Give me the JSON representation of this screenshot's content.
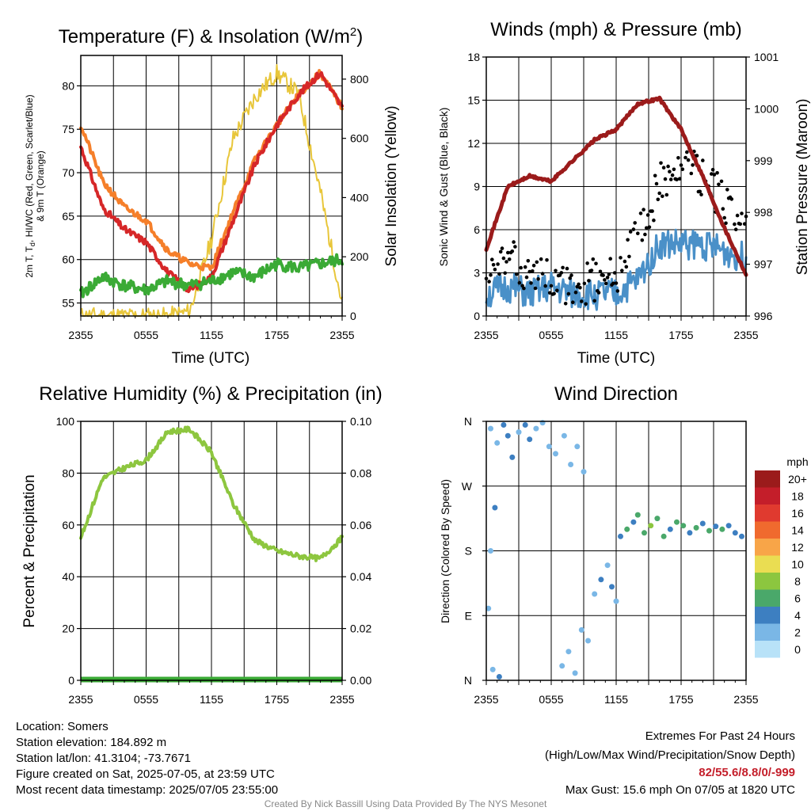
{
  "colors": {
    "temp": "#d62728",
    "dewpoint": "#3aaa35",
    "t9m": "#f57f2a",
    "solar": "#f5e04d",
    "solar_edge": "#e8c63a",
    "rh": "#8dc63f",
    "pressure": "#9b1b1b",
    "wind": "#4a90c8",
    "gust": "#000000",
    "extremes": "#c41e2a"
  },
  "time_ticks": [
    "2355",
    "0555",
    "1155",
    "1755",
    "2355"
  ],
  "charts": [
    {
      "title_pre": "Temperature (F) & Insolation (W/m",
      "title_sup": "2",
      "title_post": ")",
      "xlabel": "Time (UTC)",
      "ylabel_line1": "2m T, T",
      "ylabel_sub": "d",
      "ylabel_line1_post": ", HI/WC (Red, Green, Scarlet/Blue)",
      "ylabel_line2": "& 9m T (Orange)",
      "y2label": "Solar Insolation (Yellow)",
      "yticks": [
        "55",
        "60",
        "65",
        "70",
        "75",
        "80"
      ],
      "y2ticks": [
        "0",
        "200",
        "400",
        "600",
        "800"
      ]
    },
    {
      "title": "Winds (mph) & Pressure (mb)",
      "xlabel": "Time (UTC)",
      "ylabel": "Sonic Wind & Gust (Blue, Black)",
      "y2label": "Station Pressure (Maroon)",
      "yticks": [
        "0",
        "3",
        "6",
        "9",
        "12",
        "15",
        "18"
      ],
      "y2ticks": [
        "996",
        "997",
        "998",
        "999",
        "1000",
        "1001"
      ]
    },
    {
      "title": "Relative Humidity (%) & Precipitation (in)",
      "ylabel": "Percent & Precipitation",
      "yticks": [
        "0",
        "20",
        "40",
        "60",
        "80",
        "100"
      ],
      "y2ticks": [
        "0.00",
        "0.02",
        "0.04",
        "0.06",
        "0.08",
        "0.10"
      ]
    },
    {
      "title": "Wind Direction",
      "ylabel": "Direction (Colored By Speed)",
      "yticks": [
        "N",
        "E",
        "S",
        "W",
        "N"
      ],
      "legend_title": "mph",
      "legend_labels": [
        "20+",
        "18",
        "16",
        "14",
        "12",
        "10",
        "8",
        "6",
        "4",
        "2",
        "0"
      ],
      "legend_colors": [
        "#9b1b1b",
        "#c41e2a",
        "#e03a2f",
        "#f06a2e",
        "#f8a548",
        "#eadd52",
        "#8cc63f",
        "#4aa86a",
        "#3d7fc1",
        "#7ab7e6",
        "#b8e2f8"
      ]
    }
  ],
  "chart_data": [
    {
      "type": "line",
      "title": "Temperature (F) & Insolation (W/m2)",
      "xlabel": "Time (UTC)",
      "ylabel": "2m T, Td, HI/WC (Red, Green, Scarlet/Blue) & 9m T (Orange)",
      "y2label": "Solar Insolation (Yellow)",
      "x": [
        "2355",
        "0155",
        "0355",
        "0555",
        "0755",
        "0955",
        "1155",
        "1355",
        "1555",
        "1755",
        "1955",
        "2155",
        "2355"
      ],
      "ylim": [
        53.5,
        83.5
      ],
      "y2lim": [
        0,
        880
      ],
      "series": [
        {
          "axis": "left",
          "values": [
            73,
            66,
            63.5,
            62,
            58.5,
            56.5,
            58,
            64.5,
            71,
            75.5,
            79,
            81.5,
            77.5
          ]
        },
        {
          "axis": "left",
          "values": [
            75.5,
            69,
            66,
            64.5,
            61,
            59.5,
            59,
            65.5,
            71.5,
            75.5,
            79,
            81.5,
            77.5
          ]
        },
        {
          "axis": "left",
          "values": [
            56,
            58,
            57,
            56.5,
            57.5,
            57,
            57.5,
            58.5,
            58,
            59.5,
            59,
            59.5,
            60
          ]
        },
        {
          "axis": "right",
          "values": [
            0,
            0,
            0,
            0,
            0,
            15,
            260,
            600,
            740,
            820,
            750,
            420,
            40
          ]
        }
      ],
      "grid": true
    },
    {
      "type": "line",
      "title": "Winds (mph) & Pressure (mb)",
      "xlabel": "Time (UTC)",
      "ylabel": "Sonic Wind & Gust (Blue, Black)",
      "y2label": "Station Pressure (Maroon)",
      "x": [
        "2355",
        "0155",
        "0355",
        "0555",
        "0755",
        "0955",
        "1155",
        "1355",
        "1555",
        "1755",
        "1955",
        "2155",
        "2355"
      ],
      "ylim": [
        0,
        18
      ],
      "y2lim": [
        996,
        1001
      ],
      "series": [
        {
          "axis": "left",
          "values": [
            1.5,
            2,
            1.5,
            2,
            1.5,
            1.5,
            1.5,
            2.5,
            5,
            5,
            5,
            4.5,
            4
          ]
        },
        {
          "axis": "left",
          "values": [
            2,
            4,
            3,
            2.5,
            2,
            2.5,
            3,
            5.5,
            9,
            11,
            9.5,
            8,
            7
          ]
        },
        {
          "axis": "right",
          "values": [
            997.3,
            998.5,
            998.7,
            998.6,
            999.0,
            999.4,
            999.6,
            1000.1,
            1000.2,
            999.6,
            998.7,
            997.7,
            996.8
          ]
        }
      ],
      "grid": true
    },
    {
      "type": "line",
      "title": "Relative Humidity (%) & Precipitation (in)",
      "ylabel": "Percent & Precipitation",
      "x": [
        "2355",
        "0155",
        "0355",
        "0555",
        "0755",
        "0955",
        "1155",
        "1355",
        "1555",
        "1755",
        "1955",
        "2155",
        "2355"
      ],
      "ylim": [
        0,
        100
      ],
      "y2lim": [
        0,
        0.1
      ],
      "series": [
        {
          "axis": "left",
          "values": [
            55,
            78,
            82,
            85,
            96,
            97,
            88,
            68,
            54,
            50,
            48,
            47,
            55
          ]
        },
        {
          "axis": "right",
          "values": [
            0,
            0,
            0,
            0,
            0,
            0,
            0,
            0,
            0,
            0,
            0,
            0,
            0
          ]
        }
      ],
      "grid": true
    },
    {
      "type": "scatter",
      "title": "Wind Direction",
      "ylabel": "Direction (Colored By Speed)",
      "x_range": [
        "2355",
        "2355"
      ],
      "yticks": [
        "N",
        "E",
        "S",
        "W",
        "N"
      ],
      "points": [
        {
          "x": 0.2,
          "dir": 350,
          "speed": 1
        },
        {
          "x": 0.5,
          "dir": 330,
          "speed": 2
        },
        {
          "x": 0.8,
          "dir": 355,
          "speed": 3
        },
        {
          "x": 1.0,
          "dir": 340,
          "speed": 4
        },
        {
          "x": 1.2,
          "dir": 310,
          "speed": 3
        },
        {
          "x": 1.5,
          "dir": 345,
          "speed": 2
        },
        {
          "x": 1.8,
          "dir": 355,
          "speed": 3
        },
        {
          "x": 2.0,
          "dir": 335,
          "speed": 4
        },
        {
          "x": 2.3,
          "dir": 350,
          "speed": 2
        },
        {
          "x": 2.6,
          "dir": 358,
          "speed": 1
        },
        {
          "x": 2.9,
          "dir": 325,
          "speed": 2
        },
        {
          "x": 3.2,
          "dir": 315,
          "speed": 1
        },
        {
          "x": 0.3,
          "dir": 15,
          "speed": 1
        },
        {
          "x": 0.6,
          "dir": 5,
          "speed": 3
        },
        {
          "x": 0.2,
          "dir": 180,
          "speed": 2
        },
        {
          "x": 0.4,
          "dir": 240,
          "speed": 3
        },
        {
          "x": 0.1,
          "dir": 100,
          "speed": 2
        },
        {
          "x": 3.6,
          "dir": 340,
          "speed": 1
        },
        {
          "x": 3.9,
          "dir": 300,
          "speed": 1
        },
        {
          "x": 4.2,
          "dir": 325,
          "speed": 2
        },
        {
          "x": 4.5,
          "dir": 290,
          "speed": 1
        },
        {
          "x": 3.5,
          "dir": 20,
          "speed": 1
        },
        {
          "x": 3.8,
          "dir": 40,
          "speed": 2
        },
        {
          "x": 4.1,
          "dir": 10,
          "speed": 1
        },
        {
          "x": 4.4,
          "dir": 70,
          "speed": 2
        },
        {
          "x": 4.7,
          "dir": 55,
          "speed": 1
        },
        {
          "x": 5.0,
          "dir": 120,
          "speed": 2
        },
        {
          "x": 5.3,
          "dir": 140,
          "speed": 3
        },
        {
          "x": 5.6,
          "dir": 160,
          "speed": 2
        },
        {
          "x": 5.8,
          "dir": 130,
          "speed": 4
        },
        {
          "x": 6.0,
          "dir": 110,
          "speed": 1
        },
        {
          "x": 6.2,
          "dir": 200,
          "speed": 4
        },
        {
          "x": 6.5,
          "dir": 210,
          "speed": 5
        },
        {
          "x": 6.8,
          "dir": 220,
          "speed": 4
        },
        {
          "x": 7.0,
          "dir": 230,
          "speed": 6
        },
        {
          "x": 7.3,
          "dir": 205,
          "speed": 5
        },
        {
          "x": 7.6,
          "dir": 215,
          "speed": 7
        },
        {
          "x": 7.9,
          "dir": 225,
          "speed": 5
        },
        {
          "x": 8.2,
          "dir": 200,
          "speed": 6
        },
        {
          "x": 8.5,
          "dir": 210,
          "speed": 4
        },
        {
          "x": 8.8,
          "dir": 220,
          "speed": 5
        },
        {
          "x": 9.1,
          "dir": 215,
          "speed": 6
        },
        {
          "x": 9.4,
          "dir": 205,
          "speed": 4
        },
        {
          "x": 9.7,
          "dir": 212,
          "speed": 5
        },
        {
          "x": 10.0,
          "dir": 218,
          "speed": 4
        },
        {
          "x": 10.3,
          "dir": 208,
          "speed": 6
        },
        {
          "x": 10.6,
          "dir": 214,
          "speed": 4
        },
        {
          "x": 10.9,
          "dir": 210,
          "speed": 5
        },
        {
          "x": 11.2,
          "dir": 215,
          "speed": 4
        },
        {
          "x": 11.5,
          "dir": 205,
          "speed": 3
        },
        {
          "x": 11.8,
          "dir": 200,
          "speed": 4
        }
      ]
    }
  ],
  "info": {
    "location": "Location: Somers",
    "elevation": "Station elevation: 184.892 m",
    "latlon": "Station lat/lon: 41.3104; -73.7671",
    "created": "Figure created on Sat, 2025-07-05, at 23:59 UTC",
    "recent": "Most recent data timestamp: 2025/07/05 23:55:00"
  },
  "extremes": {
    "title": "Extremes For Past 24 Hours",
    "subtitle": "(High/Low/Max Wind/Precipitation/Snow Depth)",
    "values": "82/55.6/8.8/0/-999",
    "gust": "Max Gust: 15.6 mph On 07/05 at 1820 UTC"
  },
  "credit": "Created By Nick Bassill Using Data Provided By The NYS Mesonet"
}
